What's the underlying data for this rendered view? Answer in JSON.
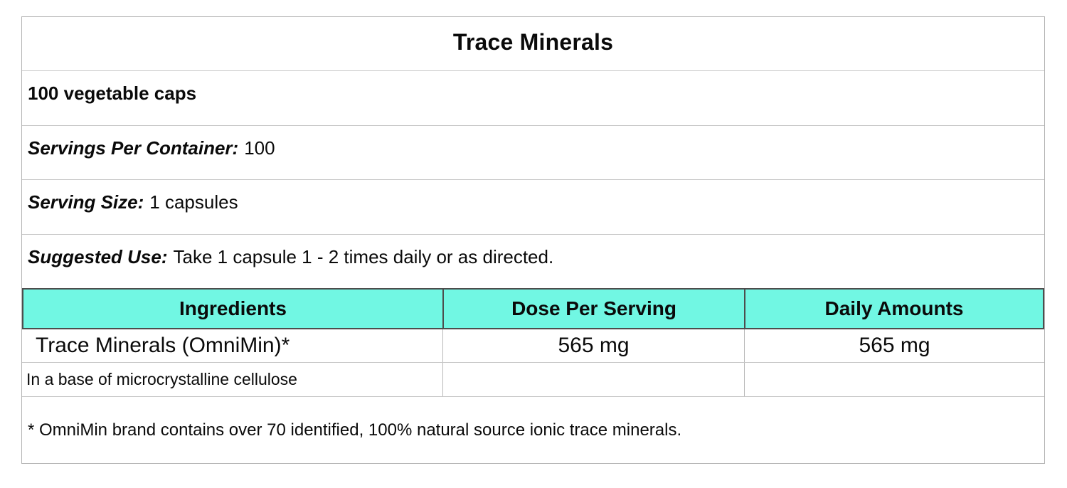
{
  "label": {
    "title": "Trace Minerals",
    "subtitle": "100 vegetable caps",
    "info_rows": [
      {
        "label": "Servings Per Container:",
        "value": "100"
      },
      {
        "label": "Serving Size:",
        "value": "1 capsules"
      },
      {
        "label": "Suggested Use:",
        "value": "Take 1 capsule 1 - 2 times daily or as directed."
      }
    ],
    "columns": [
      "Ingredients",
      "Dose Per Serving",
      "Daily Amounts"
    ],
    "rows": [
      {
        "ingredient": "Trace Minerals (OmniMin)*",
        "dose": "565 mg",
        "daily": "565 mg"
      },
      {
        "ingredient": "In a base of microcrystalline cellulose",
        "dose": "",
        "daily": ""
      }
    ],
    "footnote": "* OmniMin brand contains over 70 identified, 100% natural source ionic trace minerals.",
    "colors": {
      "header_background": "#71f7e3",
      "header_border": "#4d4d4d",
      "outer_border": "#b3b3b3",
      "grid_line": "#c6c6c6",
      "text": "#0a0a0a"
    }
  }
}
